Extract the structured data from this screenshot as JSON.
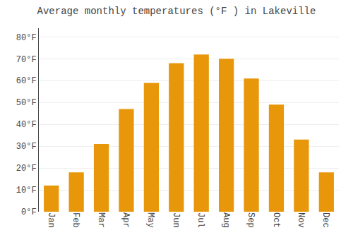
{
  "chart_data": {
    "type": "bar",
    "title": "Average monthly temperatures (°F ) in Lakeville",
    "categories": [
      "Jan",
      "Feb",
      "Mar",
      "Apr",
      "May",
      "Jun",
      "Jul",
      "Aug",
      "Sep",
      "Oct",
      "Nov",
      "Dec"
    ],
    "values": [
      12,
      18,
      31,
      47,
      59,
      68,
      72,
      70,
      61,
      49,
      33,
      18
    ],
    "color": "#E8960A",
    "ylim": [
      0,
      84
    ],
    "yticks": [
      {
        "value": 0,
        "label": "0°F"
      },
      {
        "value": 10,
        "label": "10°F"
      },
      {
        "value": 20,
        "label": "20°F"
      },
      {
        "value": 30,
        "label": "30°F"
      },
      {
        "value": 40,
        "label": "40°F"
      },
      {
        "value": 50,
        "label": "50°F"
      },
      {
        "value": 60,
        "label": "60°F"
      },
      {
        "value": 70,
        "label": "70°F"
      },
      {
        "value": 80,
        "label": "80°F"
      }
    ],
    "grid": true
  }
}
